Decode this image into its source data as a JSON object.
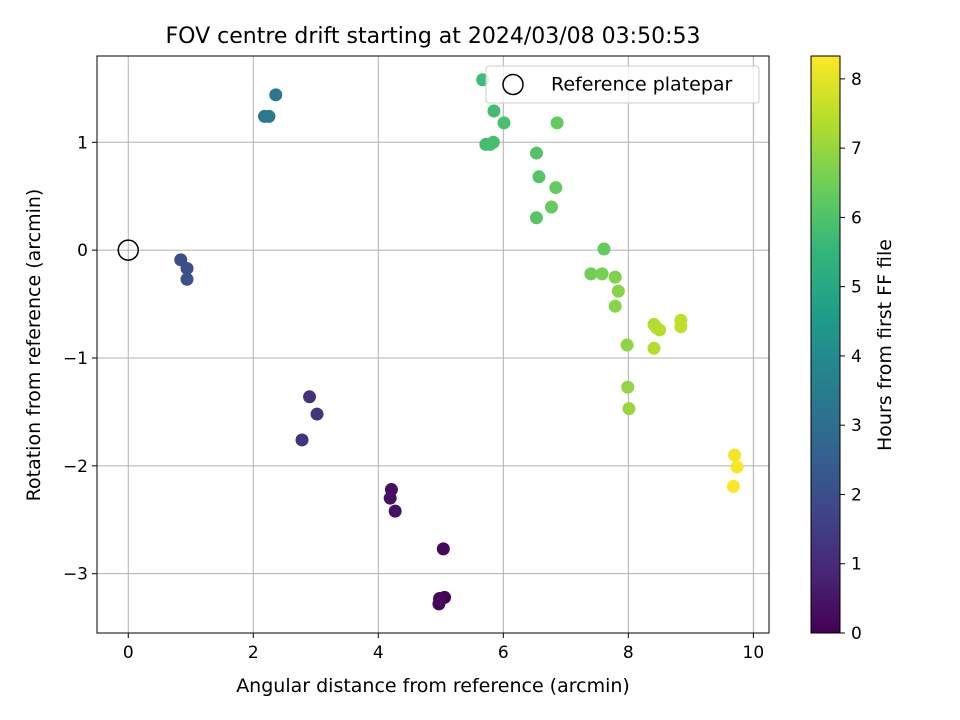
{
  "chart_data": {
    "type": "scatter",
    "title": "FOV centre drift starting at 2024/03/08 03:50:53",
    "xlabel": "Angular distance from reference (arcmin)",
    "ylabel": "Rotation from reference (arcmin)",
    "xlim": [
      -0.5,
      10.25
    ],
    "ylim": [
      -3.55,
      1.8
    ],
    "xticks": [
      0,
      2,
      4,
      6,
      8,
      10
    ],
    "xtick_labels": [
      "0",
      "2",
      "4",
      "6",
      "8",
      "10"
    ],
    "yticks": [
      -3,
      -2,
      -1,
      0,
      1
    ],
    "ytick_labels": [
      "−3",
      "−2",
      "−1",
      "0",
      "1"
    ],
    "grid": true,
    "legend": {
      "placement": "top-right",
      "entries": [
        "Reference platepar"
      ]
    },
    "reference_point": {
      "x": 0,
      "y": 0,
      "label": "Reference platepar"
    },
    "colorbar": {
      "label": "Hours from first FF file",
      "range": [
        0,
        8.33
      ],
      "ticks": [
        0,
        1,
        2,
        3,
        4,
        5,
        6,
        7,
        8
      ],
      "tick_labels": [
        "0",
        "1",
        "2",
        "3",
        "4",
        "5",
        "6",
        "7",
        "8"
      ],
      "colormap": "viridis",
      "stops": [
        "#440154",
        "#482878",
        "#3e4989",
        "#31688e",
        "#26828e",
        "#1f9e89",
        "#35b779",
        "#6ece58",
        "#b5de2b",
        "#fde725"
      ]
    },
    "points": [
      {
        "x": 5.06,
        "y": -3.22,
        "t": 0.05
      },
      {
        "x": 4.97,
        "y": -3.28,
        "t": 0.1
      },
      {
        "x": 4.98,
        "y": -3.23,
        "t": 0.15
      },
      {
        "x": 5.04,
        "y": -2.77,
        "t": 0.2
      },
      {
        "x": 4.21,
        "y": -2.22,
        "t": 0.3
      },
      {
        "x": 4.19,
        "y": -2.3,
        "t": 0.35
      },
      {
        "x": 4.27,
        "y": -2.42,
        "t": 0.4
      },
      {
        "x": 2.9,
        "y": -1.36,
        "t": 1.2
      },
      {
        "x": 3.02,
        "y": -1.52,
        "t": 1.3
      },
      {
        "x": 2.78,
        "y": -1.76,
        "t": 1.25
      },
      {
        "x": 0.84,
        "y": -0.09,
        "t": 2.0
      },
      {
        "x": 0.94,
        "y": -0.17,
        "t": 2.05
      },
      {
        "x": 0.94,
        "y": -0.27,
        "t": 2.1
      },
      {
        "x": 2.36,
        "y": 1.44,
        "t": 3.3
      },
      {
        "x": 2.18,
        "y": 1.24,
        "t": 3.35
      },
      {
        "x": 2.25,
        "y": 1.24,
        "t": 3.4
      },
      {
        "x": 5.67,
        "y": 1.58,
        "t": 5.7
      },
      {
        "x": 5.85,
        "y": 1.29,
        "t": 5.8
      },
      {
        "x": 6.01,
        "y": 1.18,
        "t": 5.9
      },
      {
        "x": 5.72,
        "y": 0.98,
        "t": 5.75
      },
      {
        "x": 5.79,
        "y": 0.98,
        "t": 5.8
      },
      {
        "x": 5.84,
        "y": 1.0,
        "t": 5.85
      },
      {
        "x": 6.86,
        "y": 1.18,
        "t": 6.3
      },
      {
        "x": 6.53,
        "y": 0.9,
        "t": 6.05
      },
      {
        "x": 6.57,
        "y": 0.68,
        "t": 6.1
      },
      {
        "x": 6.84,
        "y": 0.58,
        "t": 6.3
      },
      {
        "x": 6.77,
        "y": 0.4,
        "t": 6.3
      },
      {
        "x": 6.53,
        "y": 0.3,
        "t": 6.1
      },
      {
        "x": 7.61,
        "y": 0.01,
        "t": 6.3
      },
      {
        "x": 7.4,
        "y": -0.22,
        "t": 6.5
      },
      {
        "x": 7.58,
        "y": -0.22,
        "t": 6.6
      },
      {
        "x": 7.79,
        "y": -0.25,
        "t": 6.7
      },
      {
        "x": 7.84,
        "y": -0.38,
        "t": 6.8
      },
      {
        "x": 7.79,
        "y": -0.52,
        "t": 6.8
      },
      {
        "x": 7.98,
        "y": -0.88,
        "t": 6.9
      },
      {
        "x": 7.99,
        "y": -1.27,
        "t": 6.95
      },
      {
        "x": 8.01,
        "y": -1.47,
        "t": 7.0
      },
      {
        "x": 8.41,
        "y": -0.69,
        "t": 7.3
      },
      {
        "x": 8.45,
        "y": -0.72,
        "t": 7.35
      },
      {
        "x": 8.5,
        "y": -0.74,
        "t": 7.4
      },
      {
        "x": 8.41,
        "y": -0.91,
        "t": 7.4
      },
      {
        "x": 8.84,
        "y": -0.65,
        "t": 7.5
      },
      {
        "x": 8.84,
        "y": -0.71,
        "t": 7.55
      },
      {
        "x": 9.7,
        "y": -1.9,
        "t": 8.2
      },
      {
        "x": 9.74,
        "y": -2.01,
        "t": 8.25
      },
      {
        "x": 9.68,
        "y": -2.19,
        "t": 8.3
      }
    ]
  }
}
